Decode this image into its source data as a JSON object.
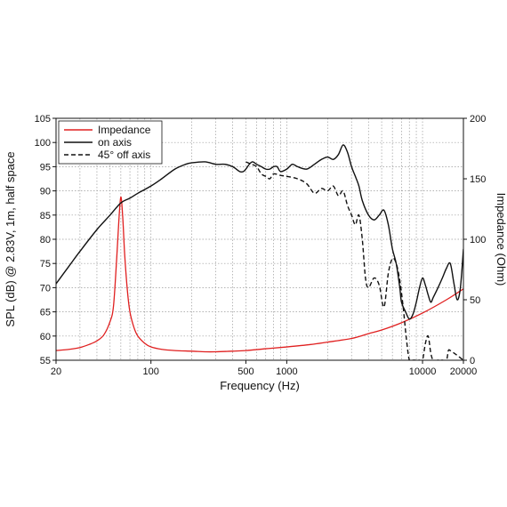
{
  "chart_data": {
    "type": "line",
    "xlabel": "Frequency (Hz)",
    "ylabel": "SPL (dB) @ 2.83V, 1m, half space",
    "y2label": "Impedance (Ohm)",
    "x_scale": "log",
    "xlim": [
      20,
      20000
    ],
    "ylim": [
      55,
      105
    ],
    "y2lim": [
      0,
      200
    ],
    "grid": true,
    "legend_position": "top-left",
    "x_tick_labels": [
      "20",
      "100",
      "500",
      "1000",
      "10000",
      "20000"
    ],
    "x_tick_values": [
      20,
      100,
      500,
      1000,
      10000,
      20000
    ],
    "y_tick_values": [
      55,
      60,
      65,
      70,
      75,
      80,
      85,
      90,
      95,
      100,
      105
    ],
    "y2_tick_values": [
      0,
      50,
      100,
      150,
      200
    ],
    "series": [
      {
        "name": "Impedance",
        "axis": "right",
        "color": "#e02020",
        "dash": "solid",
        "x": [
          20,
          25,
          30,
          35,
          40,
          45,
          50,
          53,
          56,
          58,
          60,
          62,
          64,
          67,
          70,
          75,
          80,
          90,
          100,
          120,
          150,
          200,
          250,
          300,
          400,
          500,
          700,
          1000,
          1500,
          2000,
          3000,
          4000,
          5000,
          7000,
          10000,
          15000,
          20000
        ],
        "y": [
          8,
          9,
          10.5,
          13,
          16,
          21,
          32,
          45,
          85,
          115,
          135,
          118,
          88,
          58,
          40,
          27,
          20,
          14,
          11,
          9,
          8,
          7.5,
          7,
          7,
          7.5,
          8,
          9.5,
          11,
          13,
          15,
          18,
          22,
          25,
          31,
          39,
          50,
          59
        ]
      },
      {
        "name": "on axis",
        "axis": "left",
        "color": "#111111",
        "dash": "solid",
        "x": [
          20,
          25,
          30,
          40,
          50,
          60,
          70,
          80,
          100,
          120,
          150,
          180,
          200,
          250,
          300,
          350,
          400,
          450,
          480,
          500,
          530,
          560,
          600,
          650,
          700,
          750,
          800,
          850,
          900,
          1000,
          1100,
          1200,
          1400,
          1600,
          1800,
          2000,
          2200,
          2400,
          2600,
          2800,
          3000,
          3200,
          3400,
          3600,
          4000,
          4400,
          4800,
          5200,
          5600,
          6000,
          6400,
          6800,
          7000,
          7500,
          8000,
          8500,
          9000,
          9500,
          10000,
          10500,
          11000,
          11500,
          12000,
          13000,
          14000,
          15000,
          16000,
          17000,
          18000,
          19000,
          20000
        ],
        "y": [
          70.8,
          74.5,
          77.5,
          82,
          85,
          87.5,
          88.5,
          89.5,
          91,
          92.5,
          94.5,
          95.5,
          95.8,
          96,
          95.5,
          95.5,
          95,
          94,
          94,
          94.5,
          95.5,
          96,
          95.5,
          95,
          94.5,
          94.5,
          95,
          95,
          94,
          94.5,
          95.5,
          95,
          94.5,
          95.5,
          96.5,
          97,
          96.5,
          97.5,
          99.5,
          98,
          95,
          93,
          91,
          88,
          85,
          84,
          85,
          86,
          83,
          78,
          75,
          70,
          67,
          65,
          63.5,
          64.5,
          67,
          70,
          72,
          70.5,
          68.5,
          67,
          68,
          70,
          72,
          74,
          75,
          71,
          67.5,
          70,
          78
        ]
      },
      {
        "name": "45° off axis",
        "axis": "left",
        "color": "#111111",
        "dash": "dashed",
        "x": [
          500,
          550,
          600,
          650,
          700,
          750,
          800,
          900,
          1000,
          1200,
          1400,
          1600,
          1800,
          2000,
          2200,
          2400,
          2600,
          2800,
          3000,
          3200,
          3400,
          3600,
          3800,
          4000,
          4400,
          4800,
          5200,
          5600,
          6000,
          6400,
          6800,
          7200,
          7600,
          8000,
          8500,
          9000,
          9500,
          10000,
          10500,
          11000,
          11500,
          12000,
          13000,
          14000,
          15000,
          15500,
          16000,
          17000,
          18000,
          19000,
          20000
        ],
        "y": [
          96,
          95.5,
          95,
          93.5,
          93,
          92.5,
          93.5,
          93.2,
          93,
          92.5,
          91.5,
          89.5,
          90.5,
          90,
          91,
          89,
          90,
          87,
          85,
          83,
          85,
          80,
          72,
          70,
          72,
          70.5,
          66,
          73,
          76,
          75,
          71.5,
          66,
          59.5,
          55,
          55,
          55,
          55,
          55,
          58.5,
          60,
          56.5,
          55,
          55,
          55,
          55,
          57,
          57,
          56.5,
          56,
          55.5,
          55
        ]
      }
    ]
  }
}
